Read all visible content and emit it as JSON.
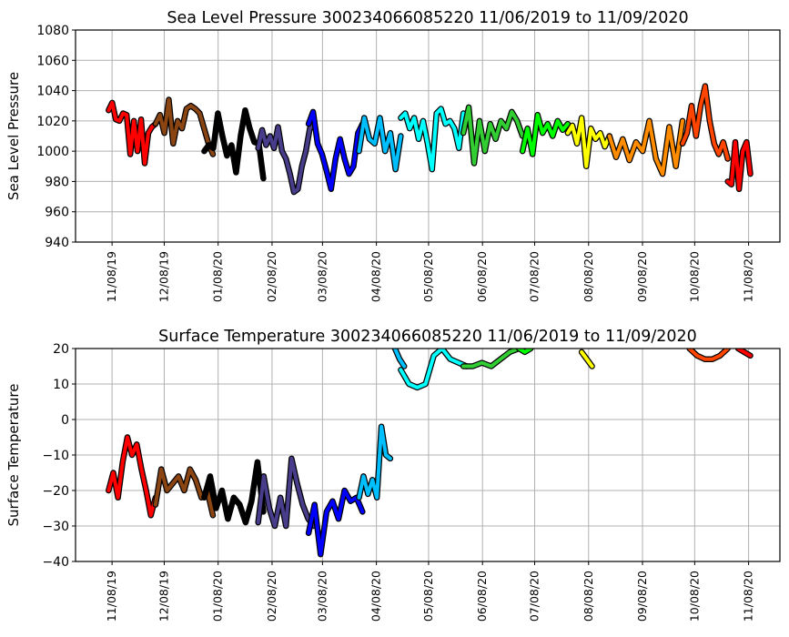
{
  "chart_data": [
    {
      "type": "scatter",
      "title": "Sea Level Pressure 300234066085220  11/06/2019 to 11/09/2020",
      "xlabel": "",
      "ylabel": "Sea Level Pressure",
      "ylim": [
        940,
        1080
      ],
      "yticks": [
        940,
        960,
        980,
        1000,
        1020,
        1040,
        1060,
        1080
      ],
      "x_units": "days since 11/08/19",
      "xlim": [
        -21,
        384
      ],
      "grid": true,
      "segments": [
        {
          "color": "#ff0000",
          "start": -2,
          "end": 25,
          "values": [
            1027,
            1032,
            1021,
            1020,
            1025,
            1024,
            998,
            1020,
            1000,
            1021,
            992,
            1012,
            1016,
            1018
          ]
        },
        {
          "color": "#8b4513",
          "start": 25,
          "end": 58,
          "values": [
            1018,
            1024,
            1012,
            1034,
            1005,
            1020,
            1015,
            1028,
            1030,
            1028,
            1025,
            1015,
            1005,
            998
          ]
        },
        {
          "color": "#000000",
          "start": 53,
          "end": 87,
          "values": [
            1000,
            1004,
            1002,
            1025,
            1010,
            997,
            1004,
            986,
            1010,
            1027,
            1015,
            1006,
            1005,
            982
          ]
        },
        {
          "color": "#483d8b",
          "start": 84,
          "end": 116,
          "values": [
            1002,
            1014,
            1004,
            1010,
            1002,
            1016,
            1000,
            995,
            985,
            973,
            975,
            990,
            1000,
            1015,
            1018
          ]
        },
        {
          "color": "#0000ff",
          "start": 113,
          "end": 144,
          "values": [
            1018,
            1026,
            1005,
            998,
            987,
            975,
            995,
            1008,
            995,
            985,
            990,
            1012,
            1018
          ]
        },
        {
          "color": "#00bfff",
          "start": 142,
          "end": 166,
          "values": [
            1000,
            1022,
            1008,
            1005,
            1022,
            1000,
            1012,
            988,
            1010
          ]
        },
        {
          "color": "#00ffff",
          "start": 166,
          "end": 202,
          "values": [
            1022,
            1025,
            1015,
            1022,
            1008,
            1020,
            1005,
            988,
            1025,
            1028,
            1018,
            1020,
            1015,
            1002,
            1025
          ]
        },
        {
          "color": "#32cd32",
          "start": 202,
          "end": 236,
          "values": [
            1012,
            1029,
            992,
            1020,
            1000,
            1018,
            1008,
            1020,
            1015,
            1026,
            1020,
            1010
          ]
        },
        {
          "color": "#00ff00",
          "start": 236,
          "end": 262,
          "values": [
            1000,
            1015,
            998,
            1024,
            1012,
            1018,
            1010,
            1020,
            1014,
            1018
          ]
        },
        {
          "color": "#ffff00",
          "start": 262,
          "end": 286,
          "values": [
            1012,
            1017,
            1005,
            1022,
            990,
            1015,
            1008,
            1012,
            1003,
            1010
          ]
        },
        {
          "color": "#ff8c00",
          "start": 286,
          "end": 328,
          "values": [
            1010,
            996,
            1008,
            994,
            1006,
            1000,
            1020,
            995,
            985,
            1016,
            990,
            1020
          ]
        },
        {
          "color": "#ff4500",
          "start": 328,
          "end": 354,
          "values": [
            1005,
            1012,
            1030,
            1010,
            1030,
            1043,
            1020,
            1005,
            998,
            1006,
            995
          ]
        },
        {
          "color": "#ff0000",
          "start": 354,
          "end": 367,
          "values": [
            980,
            978,
            1006,
            975,
            1000,
            1006,
            985
          ]
        }
      ]
    },
    {
      "type": "scatter",
      "title": "Surface Temperature 300234066085220  11/06/2019 to 11/09/2020",
      "xlabel": "",
      "ylabel": "Surface Temperature",
      "ylim": [
        -40,
        20
      ],
      "yticks": [
        -40,
        -30,
        -20,
        -10,
        0,
        10,
        20
      ],
      "x_units": "days since 11/08/19",
      "xlim": [
        -21,
        384
      ],
      "grid": true,
      "segments": [
        {
          "color": "#ff0000",
          "start": -2,
          "end": 25,
          "values": [
            -20,
            -15,
            -22,
            -12,
            -5,
            -10,
            -7,
            -14,
            -20,
            -27,
            -22
          ]
        },
        {
          "color": "#8b4513",
          "start": 25,
          "end": 58,
          "values": [
            -24,
            -14,
            -20,
            -18,
            -16,
            -20,
            -14,
            -17,
            -22,
            -20,
            -27
          ]
        },
        {
          "color": "#000000",
          "start": 53,
          "end": 87,
          "values": [
            -22,
            -16,
            -25,
            -20,
            -28,
            -22,
            -24,
            -29,
            -23,
            -12,
            -26
          ]
        },
        {
          "color": "#483d8b",
          "start": 84,
          "end": 116,
          "values": [
            -29,
            -16,
            -25,
            -30,
            -22,
            -30,
            -11,
            -18,
            -24,
            -28,
            -30
          ]
        },
        {
          "color": "#0000ff",
          "start": 113,
          "end": 144,
          "values": [
            -32,
            -24,
            -38,
            -26,
            -23,
            -28,
            -20,
            -23,
            -22,
            -26
          ]
        },
        {
          "color": "#00bfff",
          "start": 142,
          "end": 160,
          "values": [
            -22,
            -16,
            -21,
            -17,
            -22,
            -2,
            -10,
            -11
          ]
        },
        {
          "color": "#00bfff",
          "start": 160,
          "end": 168,
          "values": [
            24,
            20,
            17,
            15
          ]
        },
        {
          "color": "#00ffff",
          "start": 166,
          "end": 204,
          "values": [
            14,
            10,
            9,
            10,
            18,
            20,
            17,
            16,
            15
          ]
        },
        {
          "color": "#32cd32",
          "start": 202,
          "end": 234,
          "values": [
            15,
            15,
            16,
            15,
            17,
            19,
            20
          ]
        },
        {
          "color": "#00ff00",
          "start": 234,
          "end": 244,
          "values": [
            20,
            19,
            20,
            22
          ]
        },
        {
          "color": "#ffff00",
          "start": 270,
          "end": 276,
          "values": [
            19,
            15
          ]
        },
        {
          "color": "#ff4500",
          "start": 332,
          "end": 354,
          "values": [
            20,
            18,
            17,
            17,
            18,
            20
          ]
        },
        {
          "color": "#ff0000",
          "start": 360,
          "end": 367,
          "values": [
            20,
            19,
            18
          ]
        }
      ]
    }
  ],
  "x_ticks": [
    {
      "day": 0,
      "label": "11/08/19"
    },
    {
      "day": 30,
      "label": "12/08/19"
    },
    {
      "day": 61,
      "label": "01/08/20"
    },
    {
      "day": 92,
      "label": "02/08/20"
    },
    {
      "day": 121,
      "label": "03/08/20"
    },
    {
      "day": 152,
      "label": "04/08/20"
    },
    {
      "day": 182,
      "label": "05/08/20"
    },
    {
      "day": 213,
      "label": "06/08/20"
    },
    {
      "day": 243,
      "label": "07/08/20"
    },
    {
      "day": 274,
      "label": "08/08/20"
    },
    {
      "day": 305,
      "label": "09/08/20"
    },
    {
      "day": 335,
      "label": "10/08/20"
    },
    {
      "day": 366,
      "label": "11/08/20"
    }
  ]
}
